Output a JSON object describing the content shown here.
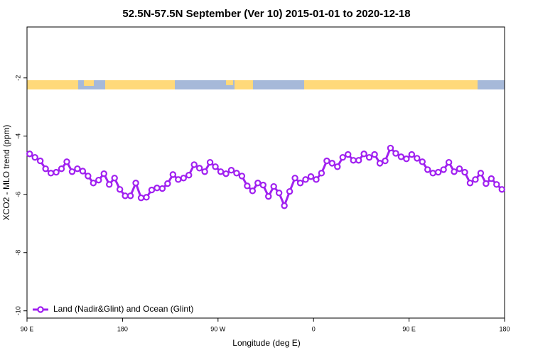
{
  "chart_data": {
    "type": "line",
    "title": "52.5N-57.5N September (Ver 10)   2015-01-01 to 2020-12-18",
    "x_label": "Longitude (deg E)",
    "y_label": "XCO2 - MLO trend (ppm)",
    "xlim": [
      90,
      540
    ],
    "xticks": [
      {
        "value": 90,
        "label": "90 E"
      },
      180,
      {
        "value": 270,
        "label": "90 W"
      },
      {
        "value": 360,
        "label": "0"
      },
      {
        "value": 450,
        "label": "90 E"
      },
      {
        "value": 540,
        "label": "180"
      }
    ],
    "ylim": [
      -10.25,
      -0.25
    ],
    "yticks": [
      -10,
      -8,
      -6,
      -4,
      -2
    ],
    "legend": "bottom-left",
    "x": [
      92.5,
      97.5,
      102.5,
      107.5,
      112.5,
      117.5,
      122.5,
      127.5,
      132.5,
      137.5,
      142.5,
      147.5,
      152.5,
      157.5,
      162.5,
      167.5,
      172.5,
      177.5,
      182.5,
      187.5,
      192.5,
      197.5,
      202.5,
      207.5,
      212.5,
      217.5,
      222.5,
      227.5,
      232.5,
      237.5,
      242.5,
      247.5,
      252.5,
      257.5,
      262.5,
      267.5,
      272.5,
      277.5,
      282.5,
      287.5,
      292.5,
      297.5,
      302.5,
      307.5,
      312.5,
      317.5,
      322.5,
      327.5,
      332.5,
      337.5,
      342.5,
      347.5,
      352.5,
      357.5,
      362.5,
      367.5,
      372.5,
      377.5,
      382.5,
      387.5,
      392.5,
      397.5,
      402.5,
      407.5,
      412.5,
      417.5,
      422.5,
      427.5,
      432.5,
      437.5,
      442.5,
      447.5,
      452.5,
      457.5,
      462.5,
      467.5,
      472.5,
      477.5,
      482.5,
      487.5,
      492.5,
      497.5,
      502.5,
      507.5,
      512.5,
      517.5,
      522.5,
      527.5,
      532.5,
      537.5
    ],
    "series": [
      {
        "name": "Land (Nadir&Glint) and Ocean (Glint)",
        "color": "#a020f0",
        "values": [
          -4.61,
          -4.73,
          -4.85,
          -5.12,
          -5.27,
          -5.24,
          -5.12,
          -4.88,
          -5.22,
          -5.12,
          -5.2,
          -5.37,
          -5.61,
          -5.51,
          -5.29,
          -5.66,
          -5.44,
          -5.83,
          -6.05,
          -6.05,
          -5.61,
          -6.12,
          -6.1,
          -5.85,
          -5.78,
          -5.8,
          -5.63,
          -5.32,
          -5.49,
          -5.44,
          -5.34,
          -4.98,
          -5.1,
          -5.22,
          -4.9,
          -5.05,
          -5.22,
          -5.29,
          -5.17,
          -5.27,
          -5.37,
          -5.71,
          -5.88,
          -5.61,
          -5.68,
          -6.07,
          -5.73,
          -5.95,
          -6.39,
          -5.9,
          -5.44,
          -5.61,
          -5.49,
          -5.39,
          -5.49,
          -5.27,
          -4.85,
          -4.93,
          -5.05,
          -4.73,
          -4.63,
          -4.83,
          -4.83,
          -4.61,
          -4.73,
          -4.63,
          -4.93,
          -4.85,
          -4.41,
          -4.59,
          -4.71,
          -4.78,
          -4.63,
          -4.76,
          -4.88,
          -5.15,
          -5.27,
          -5.24,
          -5.15,
          -4.9,
          -5.22,
          -5.12,
          -5.24,
          -5.61,
          -5.49,
          -5.27,
          -5.63,
          -5.46,
          -5.66,
          -5.83
        ]
      }
    ]
  }
}
